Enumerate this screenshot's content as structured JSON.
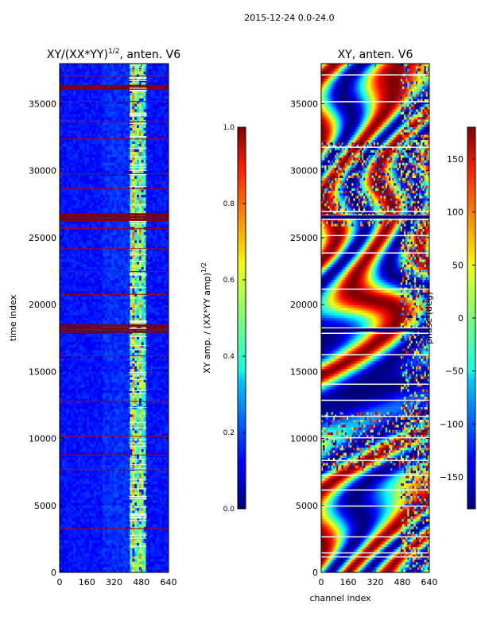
{
  "suptitle": "2015-12-24 0.0-24.0",
  "chart_data": [
    {
      "type": "heatmap",
      "title_main": "XY/(XX*YY)",
      "title_exp": "1/2",
      "title_tail": ", anten. V6",
      "xlabel": "",
      "ylabel": "time index",
      "xlim": [
        0,
        640
      ],
      "ylim": [
        0,
        38000
      ],
      "xticks": [
        0,
        160,
        320,
        480,
        640
      ],
      "yticks": [
        0,
        5000,
        10000,
        15000,
        20000,
        25000,
        30000,
        35000
      ],
      "colorscale": "jet",
      "bright_band_channels": [
        [
          410,
          500
        ]
      ],
      "saturated_rows": [
        17950,
        18150,
        18400,
        26300,
        26500,
        26700,
        36100,
        36300
      ],
      "colorbar": {
        "label_main": "XY amp. / (XX*YY amp)",
        "label_exp": "1/2",
        "range": [
          0.0,
          1.0
        ],
        "ticks": [
          "0.0",
          "0.2",
          "0.4",
          "0.6",
          "0.8",
          "1.0"
        ]
      }
    },
    {
      "type": "heatmap",
      "title": "XY, anten. V6",
      "xlabel": "channel index",
      "ylabel": "",
      "xlim": [
        0,
        640
      ],
      "ylim": [
        0,
        38000
      ],
      "xticks": [
        0,
        160,
        320,
        480,
        640
      ],
      "yticks": [
        0,
        5000,
        10000,
        15000,
        20000,
        25000,
        30000,
        35000
      ],
      "colorscale": "jet",
      "quantity": "phase",
      "colorbar": {
        "label": "phase (deg)",
        "range": [
          -180,
          180
        ],
        "ticks": [
          -150,
          -100,
          -50,
          0,
          50,
          100,
          150
        ],
        "tick_labels": [
          "−150",
          "−100",
          "−50",
          "0",
          "50",
          "100",
          "150"
        ]
      }
    }
  ]
}
